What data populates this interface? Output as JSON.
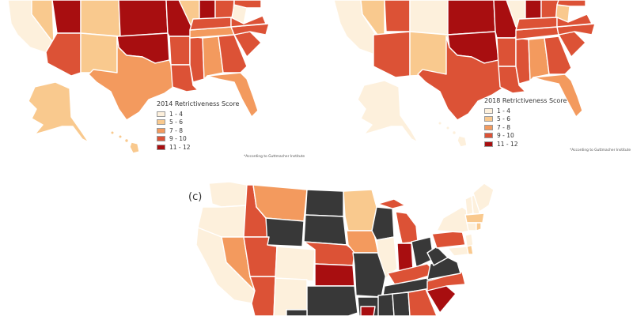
{
  "colors": {
    "s1": "#fdf0dc",
    "s2": "#f9c98e",
    "s3": "#f39a5e",
    "s4": "#dc5236",
    "s5": "#a80e10",
    "dark": "#383838"
  },
  "legend_2014": {
    "title": "2014 Retrictiveness Score",
    "items": [
      "1 - 4",
      "5 - 6",
      "7 - 8",
      "9 - 10",
      "11 - 12"
    ],
    "note": "*According to Guttmacher Institute"
  },
  "legend_2018": {
    "title": "2018 Retrictiveness Score",
    "items": [
      "1 - 4",
      "5 - 6",
      "7 - 8",
      "9 - 10",
      "11 - 12"
    ],
    "note": "*According to Guttmacher Institute"
  },
  "panel_c": {
    "label": "(c)"
  }
}
